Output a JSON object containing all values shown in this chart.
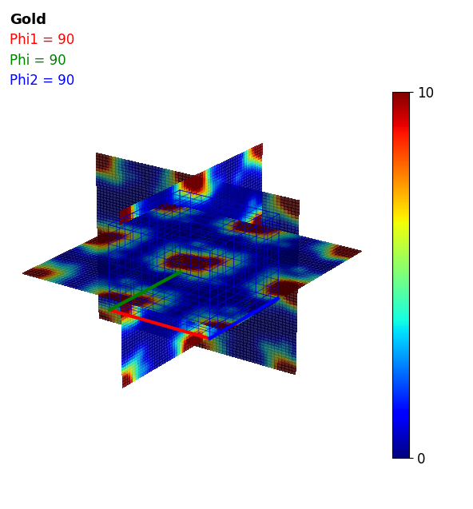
{
  "title": "Gold",
  "labels": [
    {
      "text": "Phi1 = 90",
      "color": "red"
    },
    {
      "text": "Phi = 90",
      "color": "green"
    },
    {
      "text": "Phi2 = 90",
      "color": "blue"
    }
  ],
  "colorbar_min": 0,
  "colorbar_max": 10,
  "grid_color": "#0000cc",
  "grid_alpha": 0.7,
  "grid_divisions": 9,
  "background_color": "white",
  "colormap": "jet",
  "elev": 22,
  "azim": -55,
  "cube_size": 90,
  "plane_extend": 45,
  "red_axis_color": "red",
  "green_axis_color": "green",
  "blue_axis_color": "blue",
  "axis_lw": 3.0,
  "grid_lw": 0.6,
  "plane_alpha": 0.85
}
